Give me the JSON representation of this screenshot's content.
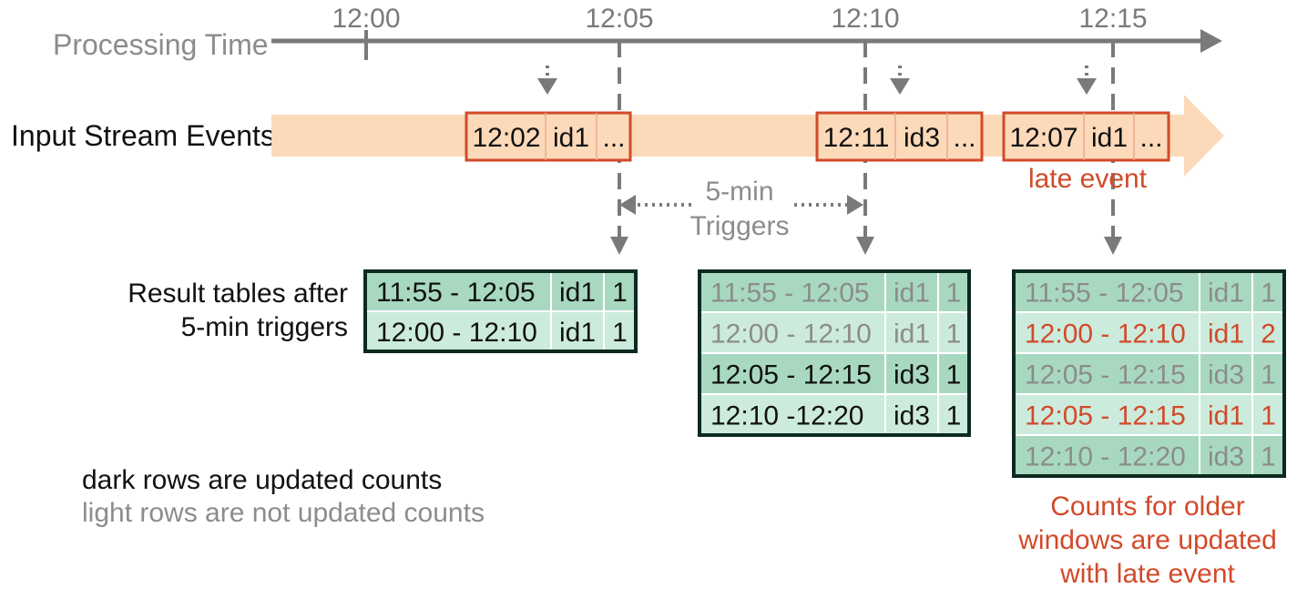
{
  "timeline": {
    "label": "Processing  Time",
    "ticks": [
      "12:00",
      "12:05",
      "12:10",
      "12:15"
    ]
  },
  "stream": {
    "label": "Input Stream Events",
    "events": [
      {
        "time": "12:02",
        "id": "id1",
        "more": "..."
      },
      {
        "time": "12:11",
        "id": "id3",
        "more": "..."
      },
      {
        "time": "12:07",
        "id": "id1",
        "more": "..."
      }
    ],
    "late_label": "late event"
  },
  "triggers": {
    "label_line1": "5-min",
    "label_line2": "Triggers"
  },
  "results": {
    "label_line1": "Result tables after",
    "label_line2": "5-min triggers",
    "tables": [
      {
        "rows": [
          {
            "window": "11:55 - 12:05",
            "id": "id1",
            "count": "1",
            "state": "updated"
          },
          {
            "window": "12:00 - 12:10",
            "id": "id1",
            "count": "1",
            "state": "updated"
          }
        ]
      },
      {
        "rows": [
          {
            "window": "11:55 - 12:05",
            "id": "id1",
            "count": "1",
            "state": "not-updated"
          },
          {
            "window": "12:00 - 12:10",
            "id": "id1",
            "count": "1",
            "state": "not-updated"
          },
          {
            "window": "12:05 - 12:15",
            "id": "id3",
            "count": "1",
            "state": "updated"
          },
          {
            "window": "12:10 -12:20",
            "id": "id3",
            "count": "1",
            "state": "updated"
          }
        ]
      },
      {
        "rows": [
          {
            "window": "11:55 - 12:05",
            "id": "id1",
            "count": "1",
            "state": "not-updated"
          },
          {
            "window": "12:00 - 12:10",
            "id": "id1",
            "count": "2",
            "state": "late"
          },
          {
            "window": "12:05 - 12:15",
            "id": "id3",
            "count": "1",
            "state": "not-updated"
          },
          {
            "window": "12:05 - 12:15",
            "id": "id1",
            "count": "1",
            "state": "late"
          },
          {
            "window": "12:10 -  12:20",
            "id": "id3",
            "count": "1",
            "state": "not-updated"
          }
        ]
      }
    ]
  },
  "legend": {
    "dark": "dark rows are updated counts",
    "light": "light rows are not updated counts"
  },
  "note": {
    "line1": "Counts for older",
    "line2": "windows are updated",
    "line3": "with late event"
  },
  "colors": {
    "stream_band": "#fbd9b9",
    "event_border": "#d24a2a",
    "late_text": "#d24a2a",
    "table_border": "#0d2a20",
    "row_updated_a": "#a8d9c0",
    "row_updated_b": "#ccebdc",
    "row_light": "#a8d9c0",
    "text_dark": "#111111",
    "text_light": "#8c8c8c",
    "arrow_gray": "#7a7a7a"
  }
}
